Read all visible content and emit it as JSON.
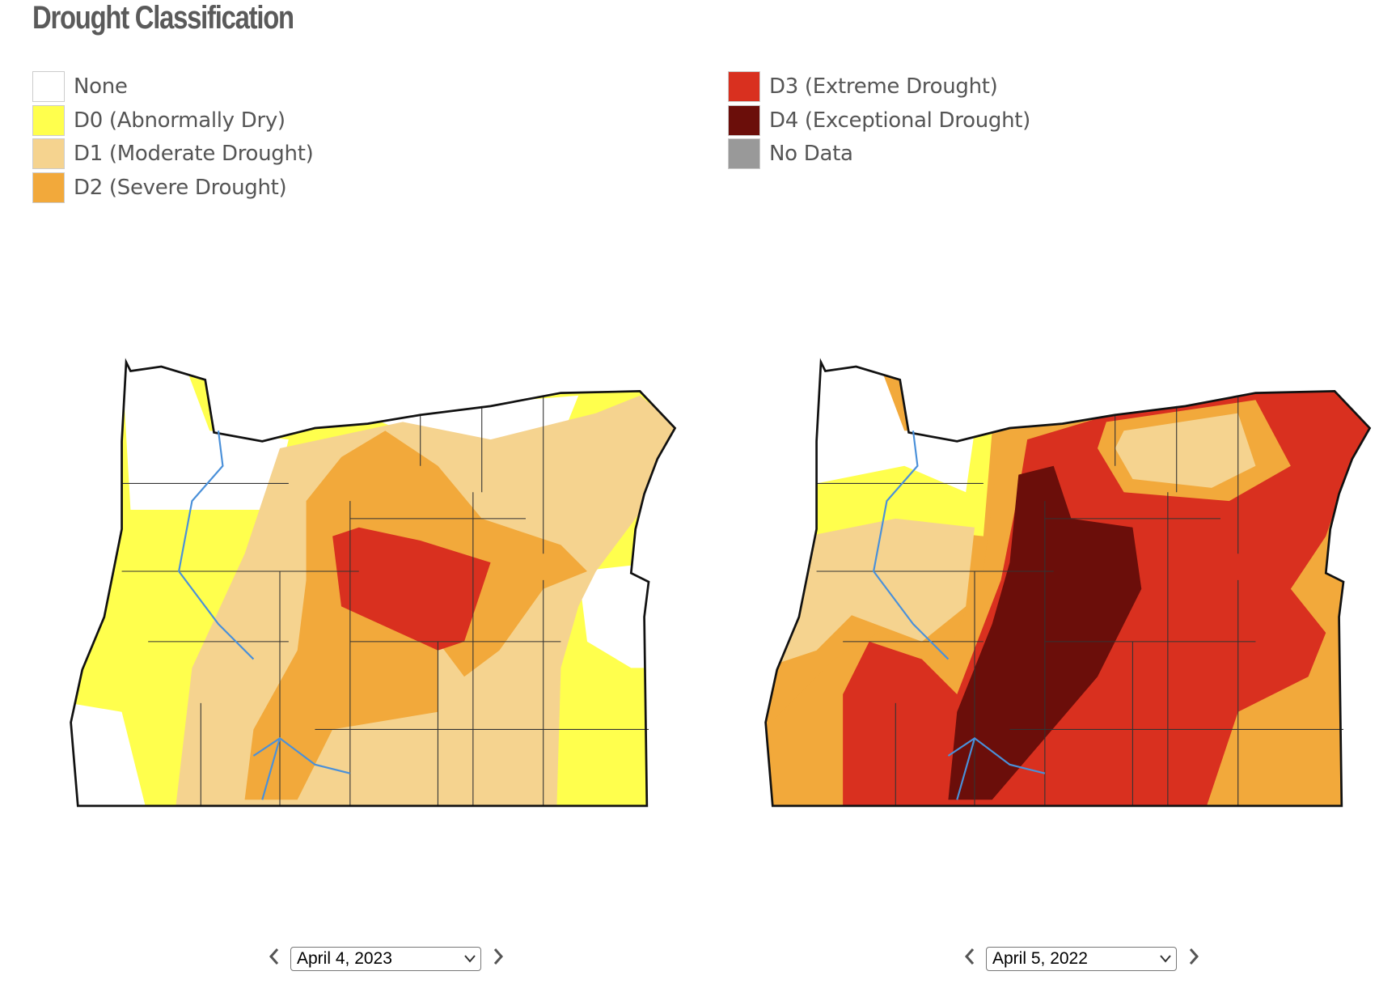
{
  "header": {
    "title": "Drought Classification"
  },
  "legend": [
    {
      "label": "None",
      "color": "#ffffff"
    },
    {
      "label": "D0 (Abnormally Dry)",
      "color": "#ffff4d"
    },
    {
      "label": "D1 (Moderate Drought)",
      "color": "#f5d38f"
    },
    {
      "label": "D2 (Severe Drought)",
      "color": "#f2a93b"
    },
    {
      "label": "D3 (Extreme Drought)",
      "color": "#d9301f"
    },
    {
      "label": "D4 (Exceptional Drought)",
      "color": "#6b0e0a"
    },
    {
      "label": "No Data",
      "color": "#999999"
    }
  ],
  "maps": [
    {
      "date": "April 4, 2023"
    },
    {
      "date": "April 5, 2022"
    }
  ]
}
